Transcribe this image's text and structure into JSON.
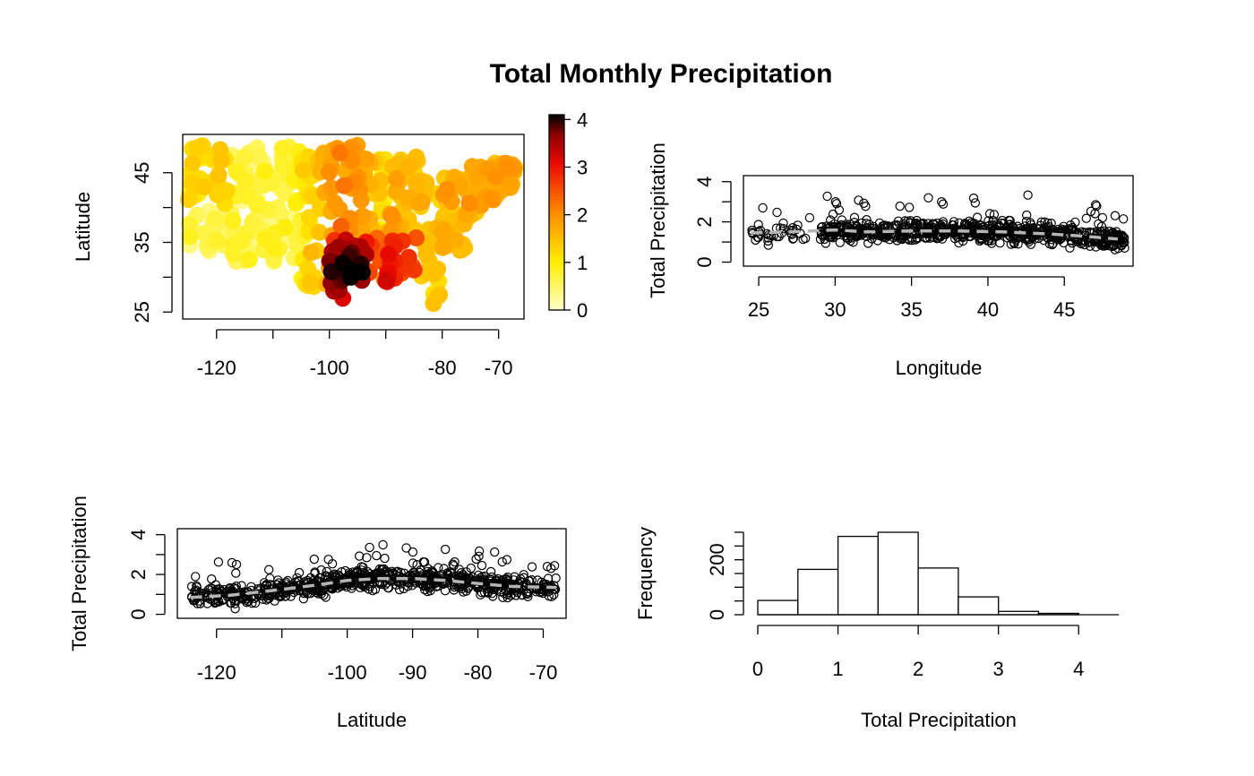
{
  "figure_title": "Total Monthly Precipitation",
  "chart_data": [
    {
      "type": "scatter",
      "panel": "map",
      "xlabel": "",
      "ylabel": "Latitude",
      "xlim": [
        -126,
        -65.5
      ],
      "ylim": [
        24,
        50.5
      ],
      "xticks": [
        -120,
        -100,
        -80,
        -70
      ],
      "xtick_labels": [
        "-120",
        "-100",
        "-80",
        "-70"
      ],
      "yticks": [
        25,
        35,
        45
      ],
      "ytick_labels": [
        "25",
        "35",
        "45"
      ],
      "color_scale": {
        "min": 0,
        "max": 4.1,
        "palette": "heat",
        "ticks": [
          0,
          1,
          2,
          3,
          4
        ],
        "tick_labels": [
          "0",
          "1",
          "2",
          "3",
          "4"
        ]
      }
    },
    {
      "type": "scatter",
      "panel": "vs-lat",
      "xlabel": "Longitude",
      "ylabel": "Total Precipitation",
      "xlim": [
        24,
        49.5
      ],
      "ylim": [
        -0.2,
        4.3
      ],
      "xticks": [
        25,
        30,
        35,
        40,
        45
      ],
      "xtick_labels": [
        "25",
        "30",
        "35",
        "40",
        "45"
      ],
      "yticks": [
        0,
        2,
        4
      ],
      "ytick_labels": [
        "0",
        "2",
        "4"
      ],
      "trend_x": [
        24.5,
        27,
        30,
        32,
        35,
        38,
        41,
        44,
        46,
        48.5
      ],
      "trend_y": [
        1.45,
        1.5,
        1.6,
        1.5,
        1.55,
        1.55,
        1.5,
        1.4,
        1.3,
        1.15
      ]
    },
    {
      "type": "scatter",
      "panel": "vs-lon",
      "xlabel": "Latitude",
      "ylabel": "Total Precipitation",
      "xlim": [
        -126,
        -66.5
      ],
      "ylim": [
        -0.2,
        4.3
      ],
      "xticks": [
        -120,
        -100,
        -90,
        -80,
        -70
      ],
      "xtick_labels": [
        "-120",
        "-100",
        "-90",
        "-80",
        "-70"
      ],
      "yticks": [
        0,
        2,
        4
      ],
      "ytick_labels": [
        "0",
        "2",
        "4"
      ],
      "trend_x": [
        -124,
        -118,
        -110,
        -104,
        -100,
        -95,
        -90,
        -85,
        -80,
        -75,
        -68
      ],
      "trend_y": [
        0.85,
        0.95,
        1.25,
        1.5,
        1.7,
        1.8,
        1.8,
        1.7,
        1.55,
        1.4,
        1.35
      ]
    },
    {
      "type": "bar",
      "panel": "histogram",
      "xlabel": "Total Precipitation",
      "ylabel": "Frequency",
      "bin_edges": [
        0,
        0.5,
        1,
        1.5,
        2,
        2.5,
        3,
        3.5,
        4
      ],
      "values": [
        52,
        165,
        285,
        300,
        170,
        65,
        12,
        5
      ],
      "xlim": [
        0,
        4.5
      ],
      "ylim": [
        0,
        300
      ],
      "xticks": [
        0,
        1,
        2,
        3,
        4
      ],
      "xtick_labels": [
        "0",
        "1",
        "2",
        "3",
        "4"
      ],
      "yticks": [
        0,
        200
      ],
      "ytick_labels": [
        "0",
        "200"
      ]
    }
  ]
}
